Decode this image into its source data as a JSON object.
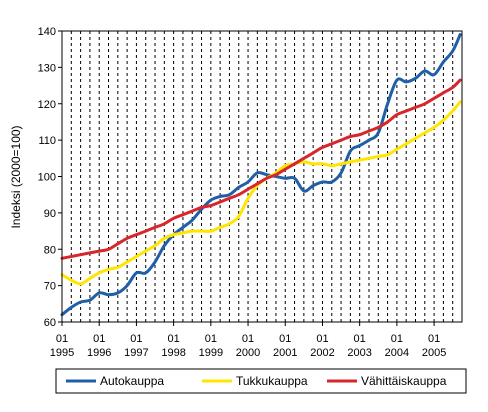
{
  "chart_data": {
    "type": "line",
    "ylabel": "Indeksi (2000=100)",
    "ylim": [
      60,
      140
    ],
    "yticks": [
      60,
      70,
      80,
      90,
      100,
      110,
      120,
      130,
      140
    ],
    "xlim": [
      1995.0,
      2005.75
    ],
    "xticks": [
      {
        "x": 1995,
        "month": "01",
        "year": "1995"
      },
      {
        "x": 1996,
        "month": "01",
        "year": "1996"
      },
      {
        "x": 1997,
        "month": "01",
        "year": "1997"
      },
      {
        "x": 1998,
        "month": "01",
        "year": "1998"
      },
      {
        "x": 1999,
        "month": "01",
        "year": "1999"
      },
      {
        "x": 2000,
        "month": "01",
        "year": "2000"
      },
      {
        "x": 2001,
        "month": "01",
        "year": "2001"
      },
      {
        "x": 2002,
        "month": "01",
        "year": "2002"
      },
      {
        "x": 2003,
        "month": "01",
        "year": "2003"
      },
      {
        "x": 2004,
        "month": "01",
        "year": "2004"
      },
      {
        "x": 2005,
        "month": "01",
        "year": "2005"
      }
    ],
    "grid": {
      "vertical_dashed_quarterly": true,
      "horizontal": false
    },
    "legend_position": "bottom",
    "series": [
      {
        "name": "Autokauppa",
        "color": "#1F5FA8",
        "x": [
          1995.0,
          1995.25,
          1995.5,
          1995.75,
          1996.0,
          1996.25,
          1996.5,
          1996.75,
          1997.0,
          1997.25,
          1997.5,
          1997.75,
          1998.0,
          1998.25,
          1998.5,
          1998.75,
          1999.0,
          1999.25,
          1999.5,
          1999.75,
          2000.0,
          2000.25,
          2000.5,
          2000.75,
          2001.0,
          2001.25,
          2001.5,
          2001.75,
          2002.0,
          2002.25,
          2002.5,
          2002.75,
          2003.0,
          2003.25,
          2003.5,
          2003.75,
          2004.0,
          2004.25,
          2004.5,
          2004.75,
          2005.0,
          2005.25,
          2005.5,
          2005.7
        ],
        "y": [
          62,
          64,
          65.5,
          66,
          68,
          67.5,
          68,
          70,
          73.5,
          73.5,
          76.5,
          81,
          84,
          86,
          88,
          91,
          93.5,
          94.5,
          95,
          97,
          98.5,
          101,
          100.5,
          100,
          99.5,
          99.5,
          96,
          97.5,
          98.5,
          98.5,
          101,
          107,
          108.5,
          110,
          112,
          120,
          126.5,
          126,
          127,
          129,
          128,
          131.5,
          134.5,
          139
        ]
      },
      {
        "name": "Tukkukauppa",
        "color": "#FFE600",
        "x": [
          1995.0,
          1995.25,
          1995.5,
          1995.75,
          1996.0,
          1996.25,
          1996.5,
          1996.75,
          1997.0,
          1997.25,
          1997.5,
          1997.75,
          1998.0,
          1998.25,
          1998.5,
          1998.75,
          1999.0,
          1999.25,
          1999.5,
          1999.75,
          2000.0,
          2000.25,
          2000.5,
          2000.75,
          2001.0,
          2001.25,
          2001.5,
          2001.75,
          2002.0,
          2002.25,
          2002.5,
          2002.75,
          2003.0,
          2003.25,
          2003.5,
          2003.75,
          2004.0,
          2004.25,
          2004.5,
          2004.75,
          2005.0,
          2005.25,
          2005.5,
          2005.7
        ],
        "y": [
          73,
          71.5,
          70.5,
          72,
          73.5,
          74.5,
          75,
          76.5,
          78,
          79.5,
          81,
          83,
          84,
          84.5,
          85,
          85,
          85,
          86,
          87,
          89,
          94,
          97.5,
          99.5,
          101,
          103,
          103.5,
          104,
          103.5,
          103.5,
          103,
          103.5,
          104,
          104.5,
          105,
          105.5,
          106,
          107.5,
          109,
          110.5,
          112,
          113.5,
          115.5,
          118,
          120.5
        ]
      },
      {
        "name": "Vähittäiskauppa",
        "color": "#D7262C",
        "x": [
          1995.0,
          1995.25,
          1995.5,
          1995.75,
          1996.0,
          1996.25,
          1996.5,
          1996.75,
          1997.0,
          1997.25,
          1997.5,
          1997.75,
          1998.0,
          1998.25,
          1998.5,
          1998.75,
          1999.0,
          1999.25,
          1999.5,
          1999.75,
          2000.0,
          2000.25,
          2000.5,
          2000.75,
          2001.0,
          2001.25,
          2001.5,
          2001.75,
          2002.0,
          2002.25,
          2002.5,
          2002.75,
          2003.0,
          2003.25,
          2003.5,
          2003.75,
          2004.0,
          2004.25,
          2004.5,
          2004.75,
          2005.0,
          2005.25,
          2005.5,
          2005.7
        ],
        "y": [
          77.5,
          78,
          78.5,
          79,
          79.5,
          80,
          81.5,
          83,
          84,
          85,
          86,
          87,
          88.5,
          89.5,
          90.5,
          91.5,
          92,
          93,
          94,
          95,
          96.5,
          98,
          99.5,
          100.5,
          102,
          103.5,
          105,
          106.5,
          108,
          109,
          110,
          111,
          111.5,
          112.5,
          113.5,
          115,
          117,
          118,
          119,
          120,
          121.5,
          123,
          124.5,
          126.5
        ]
      }
    ]
  }
}
